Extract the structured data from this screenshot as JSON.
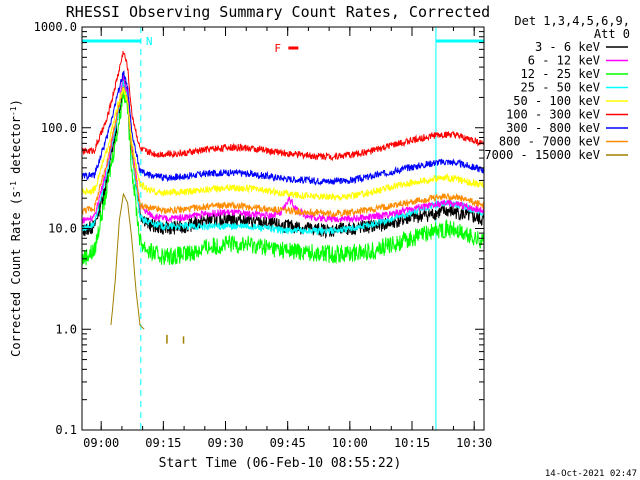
{
  "chart_data": {
    "type": "line",
    "title": "RHESSI Observing Summary Count Rates, Corrected",
    "xlabel": "Start Time (06-Feb-10 08:55:22)",
    "ylabel": "Corrected Count Rate (s",
    "ylabel_sup1": "-1",
    "ylabel_mid": " detector",
    "ylabel_sup2": "-1",
    "ylabel_end": ")",
    "yscale": "log",
    "ylim": [
      0.1,
      1000
    ],
    "xlim_minutes": [
      0,
      97
    ],
    "x_ticks": [
      {
        "label": "09:00",
        "minute": 4.63
      },
      {
        "label": "09:15",
        "minute": 19.63
      },
      {
        "label": "09:30",
        "minute": 34.63
      },
      {
        "label": "09:45",
        "minute": 49.63
      },
      {
        "label": "10:00",
        "minute": 64.63
      },
      {
        "label": "10:15",
        "minute": 79.63
      },
      {
        "label": "10:30",
        "minute": 94.63
      }
    ],
    "y_ticks": [
      {
        "label": "0.1",
        "value": 0.1
      },
      {
        "label": "1.0",
        "value": 1
      },
      {
        "label": "10.0",
        "value": 10
      },
      {
        "label": "100.0",
        "value": 100
      },
      {
        "label": "1000.0",
        "value": 1000
      }
    ],
    "legend_header": [
      "Det 1,3,4,5,6,9,",
      "Att 0"
    ],
    "legend_position": "right",
    "footer_date": "14-Oct-2021 02:47",
    "annotations": {
      "night_label": "N",
      "flare_label": "F",
      "night_intervals_minutes": [
        [
          0,
          14.2
        ],
        [
          85.4,
          97
        ]
      ],
      "flare_interval_minutes": [
        [
          49.8,
          52.2
        ]
      ]
    },
    "series": [
      {
        "name": "3 - 6 keV",
        "color": "#000000",
        "x": [
          0,
          3,
          6,
          9,
          10,
          11,
          12,
          14,
          16,
          18,
          20,
          25,
          30,
          35,
          40,
          45,
          50,
          55,
          60,
          65,
          70,
          75,
          80,
          85,
          88,
          90,
          93,
          97
        ],
        "y": [
          9.5,
          10.5,
          30,
          150,
          300,
          200,
          60,
          14,
          11,
          10.5,
          10,
          10.5,
          12,
          12.5,
          12,
          11,
          10.5,
          10,
          9.5,
          10,
          10.5,
          11.5,
          13,
          14,
          15,
          14.5,
          13.5,
          12
        ]
      },
      {
        "name": "6 - 12 keV",
        "color": "#ff00ff",
        "x": [
          0,
          3,
          6,
          9,
          10,
          11,
          12,
          14,
          16,
          18,
          20,
          25,
          30,
          35,
          40,
          45,
          48,
          50,
          52,
          55,
          60,
          65,
          70,
          75,
          80,
          85,
          88,
          90,
          93,
          97
        ],
        "y": [
          12,
          13,
          40,
          180,
          330,
          220,
          70,
          17,
          14,
          13,
          12.5,
          13,
          14,
          14.5,
          14,
          13.5,
          14,
          20,
          15,
          13,
          12.5,
          12.5,
          13,
          14,
          16,
          17,
          18,
          17.5,
          16.5,
          15
        ]
      },
      {
        "name": "12 - 25 keV",
        "color": "#00ff00",
        "x": [
          0,
          3,
          6,
          9,
          10,
          11,
          12,
          14,
          16,
          18,
          20,
          25,
          30,
          35,
          40,
          45,
          50,
          55,
          60,
          65,
          70,
          75,
          80,
          85,
          88,
          90,
          93,
          97
        ],
        "y": [
          5,
          6,
          25,
          120,
          240,
          160,
          40,
          7.5,
          6,
          5.5,
          5.3,
          5.5,
          6.5,
          7,
          7,
          6.5,
          6,
          5.8,
          5.6,
          5.7,
          6,
          7,
          8,
          9.5,
          10,
          9.5,
          8.5,
          7.5
        ]
      },
      {
        "name": "25 - 50 keV",
        "color": "#00ffff",
        "x": [
          0,
          3,
          6,
          9,
          10,
          11,
          12,
          14,
          16,
          18,
          20,
          25,
          30,
          35,
          40,
          45,
          50,
          55,
          60,
          65,
          70,
          75,
          80,
          85,
          88,
          90,
          93,
          97
        ],
        "y": [
          10,
          11,
          35,
          160,
          280,
          190,
          55,
          13,
          11.5,
          11,
          10.5,
          10.5,
          10.5,
          10.5,
          10.5,
          10,
          9.5,
          9.5,
          9.5,
          10,
          11,
          12.5,
          14.5,
          17,
          18,
          17.5,
          16,
          14
        ]
      },
      {
        "name": "50 - 100 keV",
        "color": "#ffff00",
        "x": [
          0,
          3,
          6,
          9,
          10,
          11,
          12,
          14,
          16,
          18,
          20,
          25,
          30,
          35,
          40,
          45,
          50,
          55,
          60,
          65,
          70,
          75,
          80,
          85,
          88,
          90,
          93,
          97
        ],
        "y": [
          23,
          24,
          60,
          190,
          240,
          180,
          70,
          28,
          24,
          23,
          22.5,
          23,
          24.5,
          25.5,
          25,
          23.5,
          22,
          21,
          20.5,
          21,
          23,
          26,
          29,
          31,
          32,
          31,
          29,
          27
        ]
      },
      {
        "name": "100 - 300 keV",
        "color": "#ff0000",
        "x": [
          0,
          3,
          6,
          9,
          10,
          11,
          12,
          14,
          16,
          18,
          20,
          25,
          30,
          35,
          40,
          45,
          50,
          55,
          60,
          65,
          70,
          75,
          80,
          85,
          88,
          90,
          93,
          97
        ],
        "y": [
          58,
          60,
          120,
          380,
          580,
          400,
          140,
          62,
          57,
          55,
          55,
          56,
          61,
          64,
          63,
          59,
          55,
          53,
          52,
          54,
          59,
          67,
          76,
          84,
          86,
          84,
          78,
          70
        ]
      },
      {
        "name": "300 - 800 keV",
        "color": "#0000ff",
        "x": [
          0,
          3,
          6,
          9,
          10,
          11,
          12,
          14,
          16,
          18,
          20,
          25,
          30,
          35,
          40,
          45,
          50,
          55,
          60,
          65,
          70,
          75,
          80,
          85,
          88,
          90,
          93,
          97
        ],
        "y": [
          33,
          34,
          80,
          250,
          350,
          250,
          90,
          37,
          34,
          33,
          32,
          33,
          35,
          36,
          35,
          33,
          31,
          30,
          29.5,
          30,
          33,
          37,
          41,
          45,
          46,
          45,
          42,
          38
        ]
      },
      {
        "name": "800 - 7000 keV",
        "color": "#ff8c00",
        "x": [
          0,
          3,
          6,
          9,
          10,
          11,
          12,
          14,
          16,
          18,
          20,
          25,
          30,
          35,
          40,
          45,
          50,
          55,
          60,
          65,
          70,
          75,
          80,
          85,
          88,
          90,
          93,
          97
        ],
        "y": [
          15,
          16,
          45,
          170,
          260,
          180,
          60,
          17,
          16,
          15.5,
          15,
          15.5,
          16.5,
          17,
          16.5,
          15.5,
          15,
          14.5,
          14,
          14.5,
          15.5,
          17,
          18.5,
          20,
          21,
          20.5,
          19,
          17
        ]
      },
      {
        "name": "7000 - 15000 keV",
        "color": "#a08000",
        "x": [
          7,
          8,
          9,
          10,
          11,
          12,
          13,
          14,
          15
        ],
        "y": [
          1.1,
          3,
          12,
          22,
          18,
          8,
          2.5,
          1.1,
          1.0
        ]
      }
    ]
  }
}
